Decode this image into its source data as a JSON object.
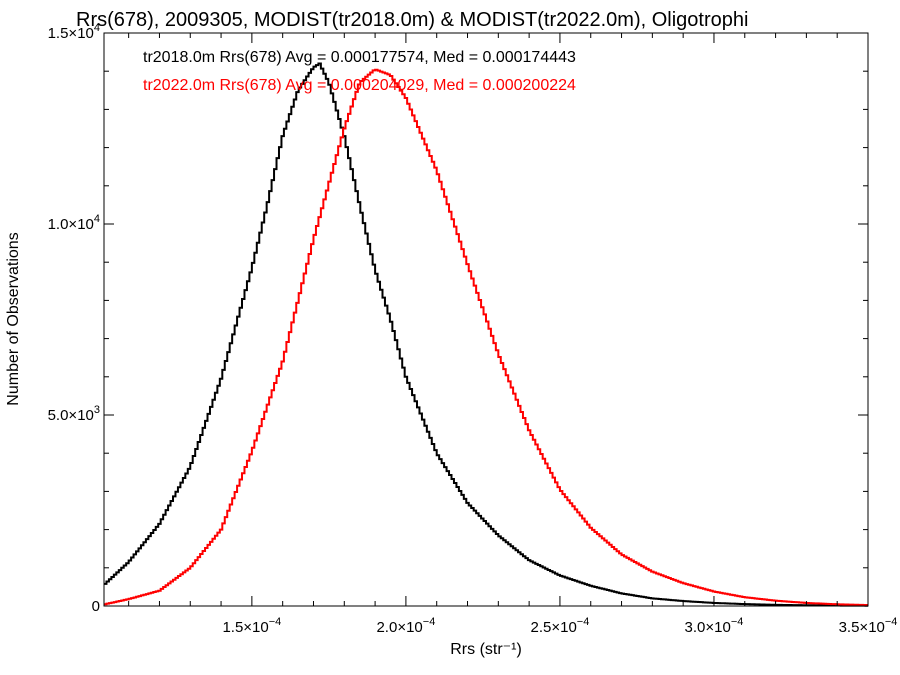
{
  "chart_data": {
    "type": "line",
    "style": "histogram-step",
    "title": "Rrs(678), 2009305, MODIST(tr2018.0m) & MODIST(tr2022.0m), Oligotrophi",
    "xlabel": "Rrs (str⁻¹)",
    "ylabel": "Number of Observations",
    "xlim": [
      0.000102,
      0.00035
    ],
    "ylim": [
      0,
      15000
    ],
    "grid": false,
    "legend_placement": "top-left",
    "x_ticks": [
      {
        "value": 0.00015,
        "mantissa": "1.5",
        "exponent": "−4"
      },
      {
        "value": 0.0002,
        "mantissa": "2.0",
        "exponent": "−4"
      },
      {
        "value": 0.00025,
        "mantissa": "2.5",
        "exponent": "−4"
      },
      {
        "value": 0.0003,
        "mantissa": "3.0",
        "exponent": "−4"
      },
      {
        "value": 0.00035,
        "mantissa": "3.5",
        "exponent": "−4"
      }
    ],
    "y_ticks": [
      {
        "value": 0,
        "label": "0",
        "mantissa": "",
        "exponent": ""
      },
      {
        "value": 5000,
        "label": "",
        "mantissa": "5.0",
        "exponent": "3"
      },
      {
        "value": 10000,
        "label": "",
        "mantissa": "1.0",
        "exponent": "4"
      },
      {
        "value": 15000,
        "label": "",
        "mantissa": "1.5",
        "exponent": "4"
      }
    ],
    "series": [
      {
        "name": "tr2018.0m",
        "color": "#000000",
        "annotation": "tr2018.0m Rrs(678) Avg = 0.000177574, Med = 0.000174443",
        "x": [
          0.000102,
          0.00011,
          0.00012,
          0.00013,
          0.00014,
          0.00015,
          0.000155,
          0.00016,
          0.000165,
          0.00017,
          0.000172,
          0.000175,
          0.00018,
          0.000185,
          0.00019,
          0.000195,
          0.0002,
          0.00021,
          0.00022,
          0.00023,
          0.00024,
          0.00025,
          0.00026,
          0.00027,
          0.00028,
          0.00029,
          0.0003,
          0.00031,
          0.00032,
          0.00033,
          0.00034,
          0.00035
        ],
        "y": [
          550,
          1150,
          2150,
          3650,
          5950,
          8850,
          10500,
          12300,
          13500,
          14100,
          14200,
          13700,
          12300,
          10500,
          8800,
          7500,
          6000,
          4000,
          2700,
          1850,
          1200,
          800,
          530,
          330,
          200,
          130,
          80,
          50,
          30,
          20,
          12,
          8
        ]
      },
      {
        "name": "tr2022.0m",
        "color": "#ff0000",
        "annotation": "tr2022.0m Rrs(678) Avg = 0.000204029, Med = 0.000200224",
        "x": [
          0.000102,
          0.00011,
          0.00012,
          0.00013,
          0.00014,
          0.00015,
          0.00016,
          0.000165,
          0.00017,
          0.000175,
          0.00018,
          0.000185,
          0.00019,
          0.000195,
          0.0002,
          0.00021,
          0.00022,
          0.00023,
          0.00024,
          0.00025,
          0.00026,
          0.00027,
          0.00028,
          0.00029,
          0.0003,
          0.00031,
          0.00032,
          0.00033,
          0.00034,
          0.00035
        ],
        "y": [
          40,
          180,
          400,
          1000,
          2000,
          4050,
          6400,
          8000,
          9600,
          11050,
          12500,
          13700,
          14050,
          13900,
          13300,
          11400,
          8950,
          6600,
          4600,
          3050,
          2050,
          1350,
          900,
          600,
          380,
          230,
          140,
          80,
          45,
          25
        ]
      }
    ]
  }
}
